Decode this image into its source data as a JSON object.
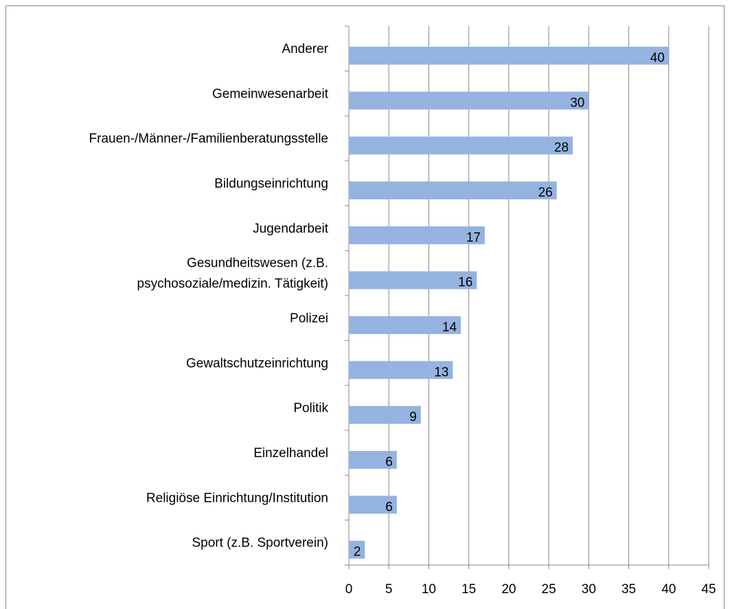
{
  "chart_data": {
    "type": "barh",
    "categories": [
      "Anderer",
      "Gemeinwesenarbeit",
      "Frauen-/Männer-/Familienberatungsstelle",
      "Bildungseinrichtung",
      "Jugendarbeit",
      "Gesundheitswesen (z.B.\npsychosoziale/medizin. Tätigkeit)",
      "Polizei",
      "Gewaltschutzeinrichtung",
      "Politik",
      "Einzelhandel",
      "Religiöse Einrichtung/Institution",
      "Sport (z.B. Sportverein)"
    ],
    "values": [
      40,
      30,
      28,
      26,
      17,
      16,
      14,
      13,
      9,
      6,
      6,
      2
    ],
    "color": "#95b3e0",
    "xlim": [
      0,
      45
    ],
    "xticks": [
      0,
      5,
      10,
      15,
      20,
      25,
      30,
      35,
      40,
      45
    ],
    "grid": true
  }
}
